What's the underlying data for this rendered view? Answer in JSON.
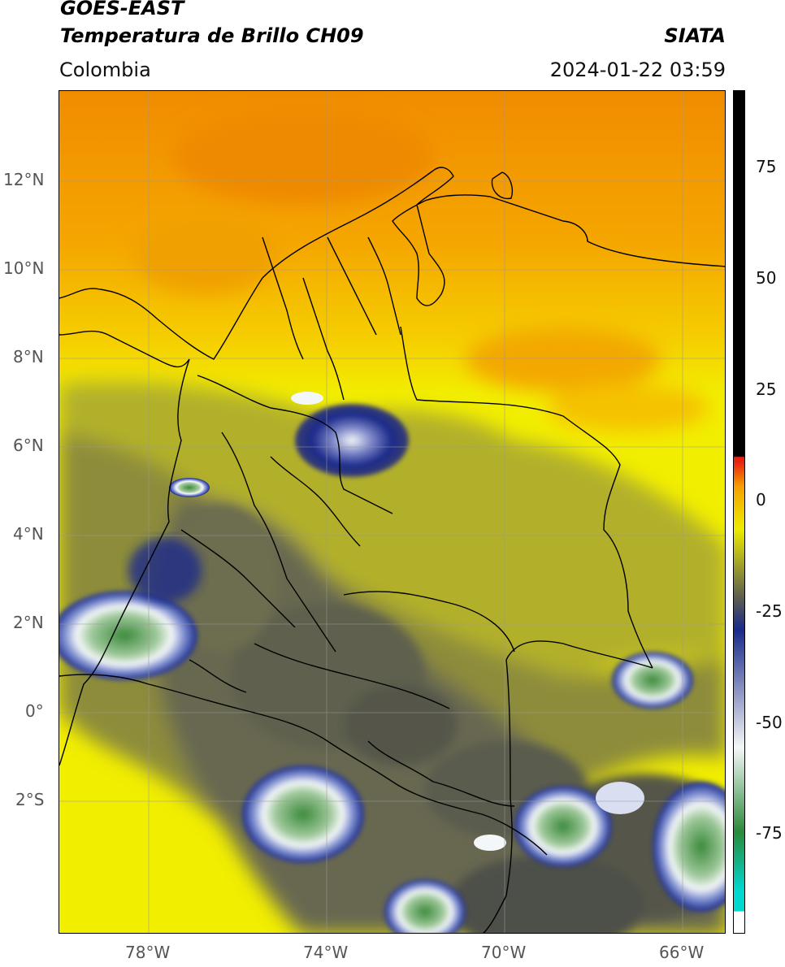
{
  "header": {
    "line1": "GOES-EAST",
    "line2": "Temperatura de Brillo CH09",
    "org": "SIATA",
    "region": "Colombia",
    "datetime": "2024-01-22 03:59"
  },
  "map": {
    "lat_ticks": [
      "12°N",
      "10°N",
      "8°N",
      "6°N",
      "4°N",
      "2°N",
      "0°",
      "2°S"
    ],
    "lon_ticks": [
      "78°W",
      "74°W",
      "70°W",
      "66°W"
    ],
    "colors": {
      "orange": "#f5a000",
      "yellow": "#f2ee00",
      "olive": "#a3a32c",
      "gray": "#5f604e",
      "navy": "#1a2a8a",
      "white": "#f4f7f7",
      "green": "#3c8a3c",
      "border": "#000000"
    }
  },
  "colorbar": {
    "labels": [
      "75",
      "50",
      "25",
      "0",
      "-25",
      "-50",
      "-75"
    ],
    "colors": [
      "#00d8d0",
      "#2a8a3a",
      "#f4f7f7",
      "#1a2a8a",
      "#5f604e",
      "#ecec00",
      "#f5a000",
      "#e82010",
      "#000000"
    ]
  }
}
